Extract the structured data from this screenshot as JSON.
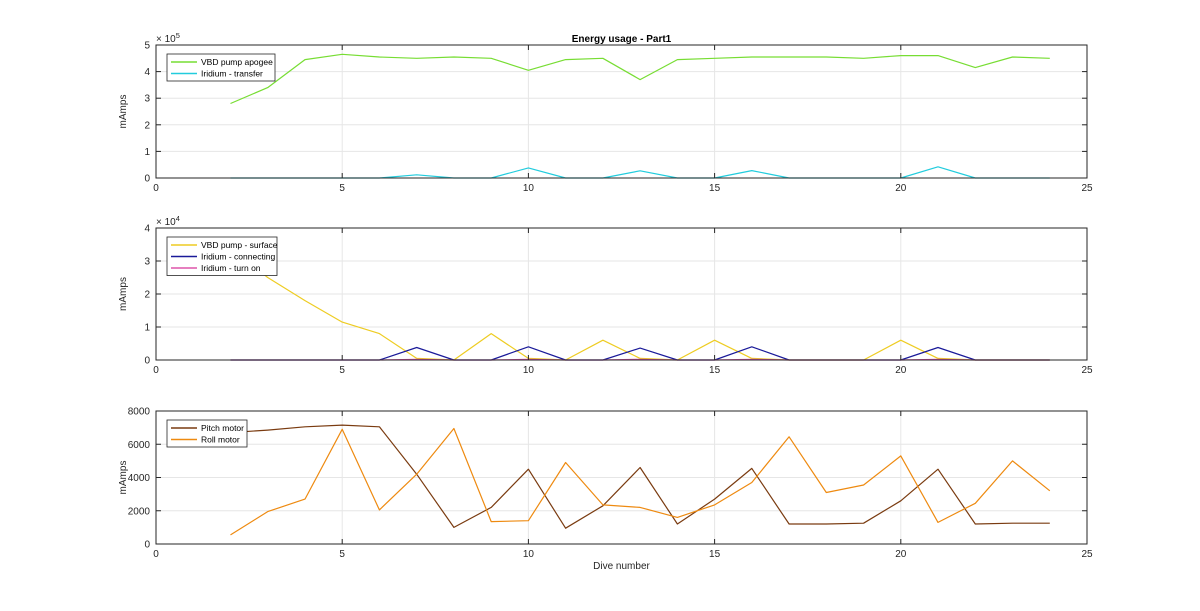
{
  "chart_data": [
    {
      "type": "line",
      "title": "Energy usage - Part1",
      "xlabel": "",
      "ylabel": "mAmps",
      "exponent_label": "× 10",
      "exponent_power": "5",
      "xlim": [
        0,
        25
      ],
      "ylim": [
        0,
        5
      ],
      "xticks": [
        0,
        5,
        10,
        15,
        20,
        25
      ],
      "yticks": [
        0,
        1,
        2,
        3,
        4,
        5
      ],
      "grid": true,
      "legend_location": "top-left",
      "x": [
        2,
        3,
        4,
        5,
        6,
        7,
        8,
        9,
        10,
        11,
        12,
        13,
        14,
        15,
        16,
        17,
        18,
        19,
        20,
        21,
        22,
        23,
        24
      ],
      "series": [
        {
          "name": "VBD pump apogee",
          "color": "#77dd33",
          "values": [
            2.8,
            3.4,
            4.45,
            4.65,
            4.55,
            4.5,
            4.55,
            4.5,
            4.05,
            4.45,
            4.5,
            3.7,
            4.45,
            4.5,
            4.55,
            4.55,
            4.55,
            4.5,
            4.6,
            4.6,
            4.15,
            4.55,
            4.5
          ]
        },
        {
          "name": "Iridium - transfer",
          "color": "#22ccdd",
          "values": [
            0,
            0,
            0,
            0,
            0,
            0.12,
            0,
            0,
            0.38,
            0,
            0,
            0.27,
            0,
            0,
            0.28,
            0,
            0,
            0,
            0,
            0.42,
            0,
            0,
            0
          ]
        }
      ]
    },
    {
      "type": "line",
      "title": "",
      "xlabel": "",
      "ylabel": "mAmps",
      "exponent_label": "× 10",
      "exponent_power": "4",
      "xlim": [
        0,
        25
      ],
      "ylim": [
        0,
        4
      ],
      "xticks": [
        0,
        5,
        10,
        15,
        20,
        25
      ],
      "yticks": [
        0,
        1,
        2,
        3,
        4
      ],
      "grid": true,
      "legend_location": "top-left",
      "x": [
        2,
        3,
        4,
        5,
        6,
        7,
        8,
        9,
        10,
        11,
        12,
        13,
        14,
        15,
        16,
        17,
        18,
        19,
        20,
        21,
        22,
        23,
        24
      ],
      "series": [
        {
          "name": "VBD pump - surface",
          "color": "#eecc22",
          "values": [
            3.4,
            2.5,
            1.8,
            1.15,
            0.8,
            0.05,
            0,
            0.8,
            0.05,
            0,
            0.6,
            0.05,
            0,
            0.6,
            0.05,
            0,
            0,
            0,
            0.6,
            0.05,
            0,
            0,
            0
          ]
        },
        {
          "name": "Iridium - connecting",
          "color": "#1a1a99",
          "values": [
            0,
            0,
            0,
            0,
            0,
            0.38,
            0,
            0,
            0.4,
            0,
            0,
            0.36,
            0,
            0,
            0.4,
            0,
            0,
            0,
            0,
            0.38,
            0,
            0,
            0
          ]
        },
        {
          "name": "Iridium - turn on",
          "color": "#dd55aa",
          "values": [
            0,
            0,
            0,
            0,
            0,
            0.02,
            0,
            0,
            0.02,
            0,
            0,
            0.02,
            0,
            0,
            0.02,
            0,
            0,
            0,
            0,
            0.02,
            0,
            0,
            0
          ]
        }
      ]
    },
    {
      "type": "line",
      "title": "",
      "xlabel": "Dive number",
      "ylabel": "mAmps",
      "exponent_label": "",
      "exponent_power": "",
      "xlim": [
        0,
        25
      ],
      "ylim": [
        0,
        8000
      ],
      "xticks": [
        0,
        5,
        10,
        15,
        20,
        25
      ],
      "yticks": [
        0,
        2000,
        4000,
        6000,
        8000
      ],
      "grid": true,
      "legend_location": "top-left",
      "x": [
        2,
        3,
        4,
        5,
        6,
        7,
        8,
        9,
        10,
        11,
        12,
        13,
        14,
        15,
        16,
        17,
        18,
        19,
        20,
        21,
        22,
        23,
        24
      ],
      "series": [
        {
          "name": "Pitch motor",
          "color": "#7a3b10",
          "values": [
            6700,
            6850,
            7050,
            7150,
            7050,
            4200,
            1000,
            2200,
            4500,
            950,
            2300,
            4600,
            1200,
            2700,
            4550,
            1200,
            1200,
            1250,
            2600,
            4500,
            1200,
            1250,
            1250
          ]
        },
        {
          "name": "Roll motor",
          "color": "#ee8a10",
          "values": [
            550,
            1950,
            2700,
            6900,
            2050,
            4200,
            6950,
            1350,
            1400,
            4900,
            2350,
            2200,
            1600,
            2350,
            3700,
            6450,
            3100,
            3550,
            5300,
            1300,
            2450,
            5000,
            3200
          ]
        }
      ]
    }
  ]
}
